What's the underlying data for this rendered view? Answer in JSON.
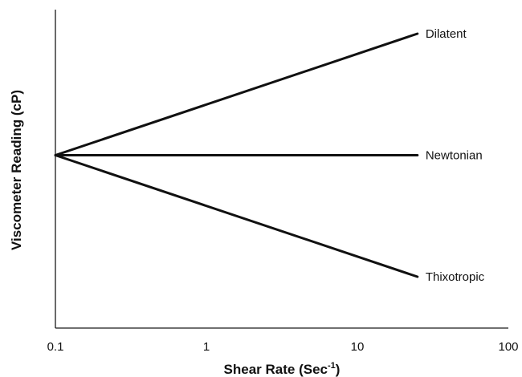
{
  "chart_data": {
    "type": "line",
    "xscale": "log",
    "xlim": [
      0.1,
      100
    ],
    "xticks": [
      "0.1",
      "1",
      "10",
      "100"
    ],
    "xlabel": "Shear Rate (Sec",
    "xlabel_exponent": "-1",
    "xlabel_close": ")",
    "ylabel": "Viscometer Reading (cP)",
    "ylim": [
      0,
      1
    ],
    "grid": false,
    "series": [
      {
        "name": "Dilatent",
        "x": [
          0.1,
          25
        ],
        "y": [
          0.5,
          1.0
        ]
      },
      {
        "name": "Newtonian",
        "x": [
          0.1,
          25
        ],
        "y": [
          0.5,
          0.5
        ]
      },
      {
        "name": "Thixotropic",
        "x": [
          0.1,
          25
        ],
        "y": [
          0.5,
          0.0
        ]
      }
    ]
  }
}
